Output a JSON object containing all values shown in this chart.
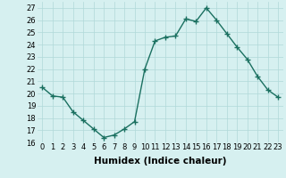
{
  "x": [
    0,
    1,
    2,
    3,
    4,
    5,
    6,
    7,
    8,
    9,
    10,
    11,
    12,
    13,
    14,
    15,
    16,
    17,
    18,
    19,
    20,
    21,
    22,
    23
  ],
  "y": [
    20.5,
    19.8,
    19.7,
    18.5,
    17.8,
    17.1,
    16.4,
    16.6,
    17.1,
    17.7,
    22.0,
    24.3,
    24.6,
    24.7,
    26.1,
    25.9,
    27.0,
    26.0,
    24.9,
    23.8,
    22.8,
    21.4,
    20.3,
    19.7
  ],
  "line_color": "#1a7060",
  "marker": "+",
  "marker_size": 4,
  "linewidth": 1.0,
  "bg_color": "#d6f0f0",
  "grid_color": "#b0d8d8",
  "xlabel": "Humidex (Indice chaleur)",
  "xlim": [
    -0.5,
    23.5
  ],
  "ylim": [
    16,
    27.5
  ],
  "yticks": [
    16,
    17,
    18,
    19,
    20,
    21,
    22,
    23,
    24,
    25,
    26,
    27
  ],
  "xticks": [
    0,
    1,
    2,
    3,
    4,
    5,
    6,
    7,
    8,
    9,
    10,
    11,
    12,
    13,
    14,
    15,
    16,
    17,
    18,
    19,
    20,
    21,
    22,
    23
  ],
  "xtick_labels": [
    "0",
    "1",
    "2",
    "3",
    "4",
    "5",
    "6",
    "7",
    "8",
    "9",
    "10",
    "11",
    "12",
    "13",
    "14",
    "15",
    "16",
    "17",
    "18",
    "19",
    "20",
    "21",
    "22",
    "23"
  ],
  "xlabel_fontsize": 7.5,
  "tick_fontsize": 6
}
